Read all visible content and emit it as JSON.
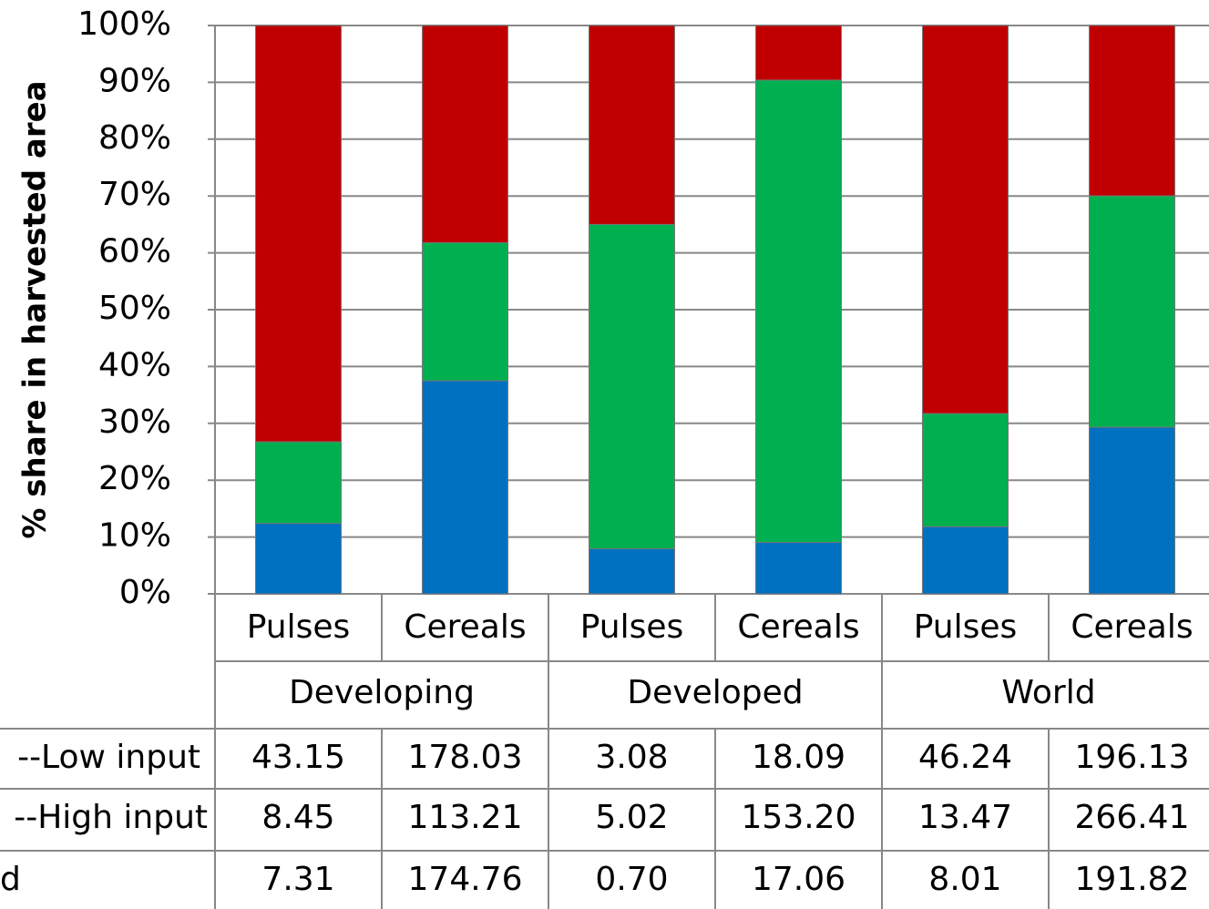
{
  "chart_data": {
    "type": "stacked_percent_bar",
    "y_axis_label": "% share in harvested area",
    "categories": [
      "Pulses",
      "Cereals",
      "Pulses",
      "Cereals",
      "Pulses",
      "Cereals"
    ],
    "groups": [
      "Developing",
      "Developed",
      "World"
    ],
    "series": [
      {
        "name": "--Low input",
        "color": "#c00000",
        "values": [
          43.15,
          178.03,
          3.08,
          18.09,
          46.24,
          196.13
        ],
        "value_labels": [
          "43.15",
          "178.03",
          "3.08",
          "18.09",
          "46.24",
          "196.13"
        ]
      },
      {
        "name": "--High input",
        "color": "#00b050",
        "values": [
          8.45,
          113.21,
          5.02,
          153.2,
          13.47,
          266.41
        ],
        "value_labels": [
          "8.45",
          "113.21",
          "5.02",
          "153.20",
          "13.47",
          "266.41"
        ]
      },
      {
        "name": "d",
        "color": "#0070c0",
        "values": [
          7.31,
          174.76,
          0.7,
          17.06,
          8.01,
          191.82
        ],
        "value_labels": [
          "7.31",
          "174.76",
          "0.70",
          "17.06",
          "8.01",
          "191.82"
        ]
      }
    ],
    "ylim": [
      0,
      100
    ],
    "yticks": [
      {
        "value": 0,
        "label": "0%"
      },
      {
        "value": 10,
        "label": "10%"
      },
      {
        "value": 20,
        "label": "20%"
      },
      {
        "value": 30,
        "label": "30%"
      },
      {
        "value": 40,
        "label": "40%"
      },
      {
        "value": 50,
        "label": "50%"
      },
      {
        "value": 60,
        "label": "60%"
      },
      {
        "value": 70,
        "label": "70%"
      },
      {
        "value": 80,
        "label": "80%"
      },
      {
        "value": 90,
        "label": "90%"
      },
      {
        "value": 100,
        "label": "100%"
      }
    ],
    "grid": true
  }
}
